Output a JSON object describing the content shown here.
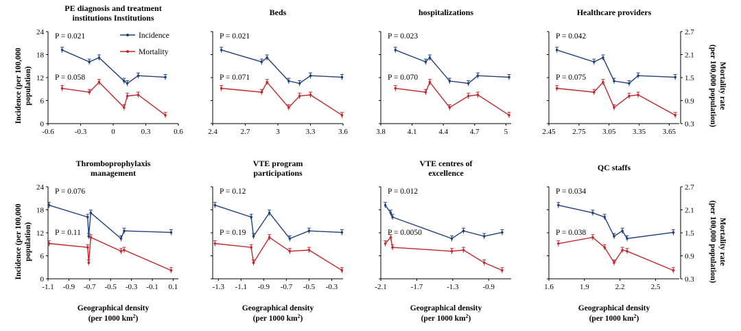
{
  "y_left": {
    "label_line1": "Incidence (per 100,000",
    "label_line2": "population)",
    "ticks": [
      "0",
      "6",
      "12",
      "18",
      "24"
    ]
  },
  "y_right": {
    "label_line1": "Mortality rate",
    "label_line2": "(per 100,000 population)",
    "ticks": [
      "0.3",
      "0.9",
      "1.5",
      "2.1",
      "2.7"
    ]
  },
  "x_axis_label": {
    "line1": "Geographical density",
    "line2_prefix": "(per 1000 km",
    "line2_sup": "2",
    "line2_suffix": ")"
  },
  "legend": {
    "incidence": "Incidence",
    "mortality": "Mortality"
  },
  "colors": {
    "incidence": "#1f3f7a",
    "mortality": "#c0282d",
    "axis": "#000000"
  },
  "chart_data": [
    {
      "type": "line",
      "title_lines": [
        "PE diagnosis and treatment",
        "institutions Institutions"
      ],
      "xlim": [
        -0.6,
        0.6
      ],
      "xticks": [
        "-0.6",
        "-0.3",
        "0",
        "0.3",
        "0.6"
      ],
      "ylim": [
        0,
        24
      ],
      "y2lim": [
        0.3,
        2.7
      ],
      "annotations": [
        "P = 0.021",
        "P = 0.058"
      ],
      "series": [
        {
          "name": "Incidence",
          "axis": "left",
          "x": [
            -0.47,
            -0.22,
            -0.13,
            0.1,
            0.13,
            0.23,
            0.48
          ],
          "y": [
            19.2,
            16.1,
            17.2,
            11.1,
            10.5,
            12.5,
            12.1
          ]
        },
        {
          "name": "Mortality",
          "axis": "right",
          "x": [
            -0.47,
            -0.22,
            -0.13,
            0.1,
            0.13,
            0.23,
            0.48
          ],
          "y": [
            1.22,
            1.12,
            1.38,
            0.72,
            1.02,
            1.05,
            0.52
          ]
        }
      ]
    },
    {
      "type": "line",
      "title_lines": [
        "Beds"
      ],
      "xlim": [
        2.4,
        3.6
      ],
      "xticks": [
        "2.4",
        "2.7",
        "3",
        "3.3",
        "3.6"
      ],
      "ylim": [
        0,
        24
      ],
      "y2lim": [
        0.3,
        2.7
      ],
      "annotations": [
        "P = 0.021",
        "P = 0.071"
      ],
      "series": [
        {
          "name": "Incidence",
          "axis": "left",
          "x": [
            2.48,
            2.85,
            2.9,
            3.1,
            3.2,
            3.3,
            3.59
          ],
          "y": [
            19.2,
            16.1,
            17.2,
            11.1,
            10.5,
            12.5,
            12.1
          ]
        },
        {
          "name": "Mortality",
          "axis": "right",
          "x": [
            2.48,
            2.85,
            2.9,
            3.1,
            3.2,
            3.3,
            3.59
          ],
          "y": [
            1.22,
            1.12,
            1.38,
            0.72,
            1.02,
            1.05,
            0.52
          ]
        }
      ]
    },
    {
      "type": "line",
      "title_lines": [
        "hospitalizations"
      ],
      "xlim": [
        3.8,
        5.05
      ],
      "xticks": [
        "3.8",
        "4.1",
        "4.4",
        "4.7",
        "5"
      ],
      "ylim": [
        0,
        24
      ],
      "y2lim": [
        0.3,
        2.7
      ],
      "annotations": [
        "P = 0.023",
        "P = 0.070"
      ],
      "series": [
        {
          "name": "Incidence",
          "axis": "left",
          "x": [
            3.94,
            4.23,
            4.27,
            4.46,
            4.64,
            4.73,
            5.03
          ],
          "y": [
            19.2,
            16.1,
            17.2,
            11.1,
            10.5,
            12.5,
            12.1
          ]
        },
        {
          "name": "Mortality",
          "axis": "right",
          "x": [
            3.94,
            4.23,
            4.27,
            4.46,
            4.64,
            4.73,
            5.03
          ],
          "y": [
            1.22,
            1.12,
            1.38,
            0.72,
            1.02,
            1.05,
            0.52
          ]
        }
      ]
    },
    {
      "type": "line",
      "title_lines": [
        "Healthcare providers"
      ],
      "xlim": [
        2.45,
        3.75
      ],
      "xticks": [
        "2.45",
        "2.75",
        "3.05",
        "3.35",
        "3.65"
      ],
      "ylim": [
        0,
        24
      ],
      "y2lim": [
        0.3,
        2.7
      ],
      "annotations": [
        "P = 0.042",
        "P = 0.075"
      ],
      "series": [
        {
          "name": "Incidence",
          "axis": "left",
          "x": [
            2.53,
            2.9,
            2.99,
            3.1,
            3.25,
            3.34,
            3.71
          ],
          "y": [
            19.2,
            16.1,
            17.2,
            11.1,
            10.5,
            12.5,
            12.1
          ]
        },
        {
          "name": "Mortality",
          "axis": "right",
          "x": [
            2.53,
            2.9,
            2.99,
            3.1,
            3.25,
            3.34,
            3.71
          ],
          "y": [
            1.22,
            1.12,
            1.38,
            0.72,
            1.02,
            1.05,
            0.52
          ]
        }
      ]
    },
    {
      "type": "line",
      "title_lines": [
        "Thromboprophylaxis",
        "management"
      ],
      "xlim": [
        -1.1,
        0.15
      ],
      "xticks": [
        "-1.1",
        "-0.9",
        "-0.7",
        "-0.5",
        "-0.3",
        "-0.1",
        "0.1"
      ],
      "ylim": [
        0,
        24
      ],
      "y2lim": [
        0.3,
        2.7
      ],
      "annotations": [
        "P = 0.076",
        "P = 0.11"
      ],
      "series": [
        {
          "name": "Incidence",
          "axis": "left",
          "x": [
            -1.09,
            -0.72,
            -0.71,
            -0.69,
            -0.4,
            -0.37,
            0.08
          ],
          "y": [
            19.2,
            16.1,
            11.1,
            17.2,
            10.5,
            12.5,
            12.1
          ]
        },
        {
          "name": "Mortality",
          "axis": "right",
          "x": [
            -1.09,
            -0.72,
            -0.71,
            -0.69,
            -0.4,
            -0.37,
            0.08
          ],
          "y": [
            1.22,
            1.12,
            0.72,
            1.38,
            1.02,
            1.05,
            0.52
          ]
        }
      ]
    },
    {
      "type": "line",
      "title_lines": [
        "VTE program",
        "participations"
      ],
      "xlim": [
        -1.35,
        -0.2
      ],
      "xticks": [
        "-1.3",
        "-1.1",
        "-0.9",
        "-0.7",
        "-0.5",
        "-0.3"
      ],
      "ylim": [
        0,
        24
      ],
      "y2lim": [
        0.3,
        2.7
      ],
      "annotations": [
        "P = 0.12",
        "P = 0.19"
      ],
      "series": [
        {
          "name": "Incidence",
          "axis": "left",
          "x": [
            -1.33,
            -1.01,
            -0.99,
            -0.85,
            -0.67,
            -0.5,
            -0.21
          ],
          "y": [
            19.2,
            16.1,
            11.1,
            17.2,
            10.5,
            12.5,
            12.1
          ]
        },
        {
          "name": "Mortality",
          "axis": "right",
          "x": [
            -1.33,
            -1.01,
            -0.99,
            -0.85,
            -0.67,
            -0.5,
            -0.21
          ],
          "y": [
            1.22,
            1.12,
            0.72,
            1.38,
            1.02,
            1.05,
            0.52
          ]
        }
      ]
    },
    {
      "type": "line",
      "title_lines": [
        "VTE centres of",
        "excellence"
      ],
      "xlim": [
        -2.1,
        -0.65
      ],
      "xticks": [
        "-2.1",
        "-1.7",
        "-1.3",
        "-0.9"
      ],
      "ylim": [
        0,
        24
      ],
      "y2lim": [
        0.3,
        2.7
      ],
      "annotations": [
        "P = 0.012",
        "P = 0.0050"
      ],
      "series": [
        {
          "name": "Incidence",
          "axis": "left",
          "x": [
            -2.05,
            -1.99,
            -1.97,
            -1.31,
            -1.18,
            -0.95,
            -0.75
          ],
          "y": [
            19.2,
            17.2,
            16.1,
            10.5,
            12.5,
            11.1,
            12.1
          ]
        },
        {
          "name": "Mortality",
          "axis": "right",
          "x": [
            -2.05,
            -1.99,
            -1.97,
            -1.31,
            -1.18,
            -0.95,
            -0.75
          ],
          "y": [
            1.22,
            1.38,
            1.12,
            1.02,
            1.05,
            0.72,
            0.52
          ]
        }
      ]
    },
    {
      "type": "line",
      "title_lines": [
        "QC staffs"
      ],
      "xlim": [
        1.6,
        2.7
      ],
      "xticks": [
        "1.6",
        "1.9",
        "2.2",
        "2.5"
      ],
      "ylim": [
        0,
        24
      ],
      "y2lim": [
        0.3,
        2.7
      ],
      "annotations": [
        "P = 0.034",
        "P = 0.038"
      ],
      "series": [
        {
          "name": "Incidence",
          "axis": "left",
          "x": [
            1.68,
            1.97,
            2.07,
            2.15,
            2.22,
            2.26,
            2.65
          ],
          "y": [
            19.2,
            17.2,
            16.1,
            11.1,
            12.5,
            10.5,
            12.1
          ]
        },
        {
          "name": "Mortality",
          "axis": "right",
          "x": [
            1.68,
            1.97,
            2.07,
            2.15,
            2.22,
            2.26,
            2.65
          ],
          "y": [
            1.22,
            1.38,
            1.12,
            0.72,
            1.05,
            1.02,
            0.52
          ]
        }
      ]
    }
  ]
}
